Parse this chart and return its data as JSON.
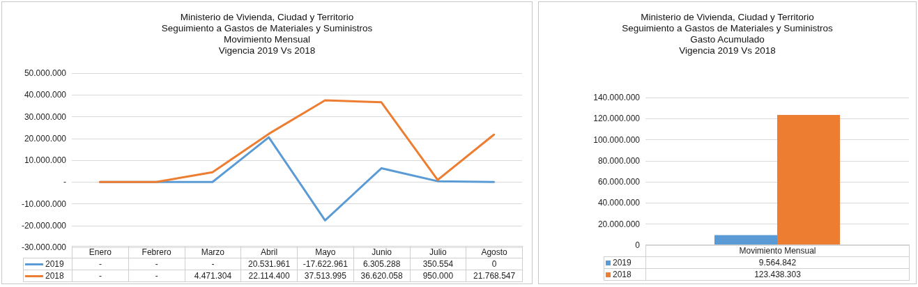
{
  "chart_data": [
    {
      "type": "line",
      "title": "Ministerio de Vivienda, Ciudad y Territorio\nSeguimiento a Gastos de Materiales y Suministros\nMovimiento Mensual\nVigencia 2019 Vs 2018",
      "categories": [
        "Enero",
        "Febrero",
        "Marzo",
        "Abril",
        "Mayo",
        "Junio",
        "Julio",
        "Agosto"
      ],
      "series": [
        {
          "name": "2019",
          "color": "#5b9bd5",
          "values": [
            0,
            0,
            0,
            20531961,
            -17622961,
            6305288,
            350554,
            0
          ],
          "value_labels": [
            "-",
            "-",
            "-",
            "20.531.961",
            "-17.622.961",
            "6.305.288",
            "350.554",
            "0"
          ]
        },
        {
          "name": "2018",
          "color": "#ed7d31",
          "values": [
            0,
            0,
            4471304,
            22114400,
            37513995,
            36620058,
            950000,
            21768547
          ],
          "value_labels": [
            "-",
            "-",
            "4.471.304",
            "22.114.400",
            "37.513.995",
            "36.620.058",
            "950.000",
            "21.768.547"
          ]
        }
      ],
      "ylim": [
        -30000000,
        50000000
      ],
      "yticks": [
        {
          "value": -30000000,
          "label": "-30.000.000"
        },
        {
          "value": -20000000,
          "label": "-20.000.000"
        },
        {
          "value": -10000000,
          "label": "-10.000.000"
        },
        {
          "value": 0,
          "label": "-"
        },
        {
          "value": 10000000,
          "label": "10.000.000"
        },
        {
          "value": 20000000,
          "label": "20.000.000"
        },
        {
          "value": 30000000,
          "label": "30.000.000"
        },
        {
          "value": 40000000,
          "label": "40.000.000"
        },
        {
          "value": 50000000,
          "label": "50.000.000"
        }
      ],
      "grid": "y",
      "legend": "bottom",
      "marker": "none",
      "line_style": "solid"
    },
    {
      "type": "bar",
      "title": "Ministerio de Vivienda, Ciudad y Territorio\nSeguimiento a Gastos de Materiales y Suministros\nGasto Acumulado\nVigencia 2019 Vs 2018",
      "categories": [
        "Movimiento Mensual"
      ],
      "series": [
        {
          "name": "2019",
          "color": "#5b9bd5",
          "values": [
            9564842
          ],
          "value_labels": [
            "9.564.842"
          ]
        },
        {
          "name": "2018",
          "color": "#ed7d31",
          "values": [
            123438303
          ],
          "value_labels": [
            "123.438.303"
          ]
        }
      ],
      "ylim": [
        0,
        140000000
      ],
      "yticks": [
        0,
        {
          "value": 20000000,
          "label": "20.000.000"
        },
        {
          "value": 40000000,
          "label": "40.000.000"
        },
        {
          "value": 60000000,
          "label": "60.000.000"
        },
        {
          "value": 80000000,
          "label": "80.000.000"
        },
        {
          "value": 100000000,
          "label": "100.000.000"
        },
        {
          "value": 120000000,
          "label": "120.000.000"
        },
        {
          "value": 140000000,
          "label": "140.000.000"
        }
      ],
      "grid": "y",
      "legend": "bottom"
    }
  ]
}
